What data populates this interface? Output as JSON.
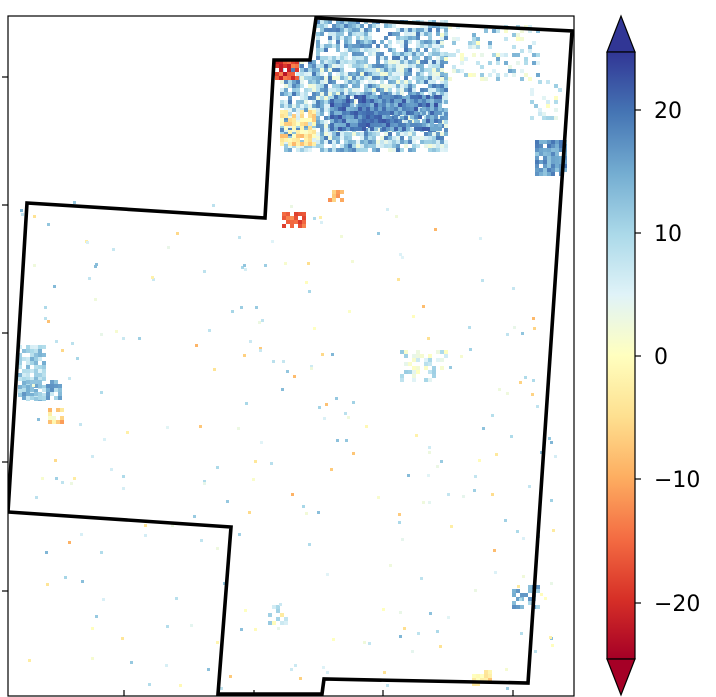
{
  "map": {
    "colormap": "RdYlBu",
    "cmap_stops": [
      "#a50026",
      "#d73027",
      "#f46d43",
      "#fdae61",
      "#fee090",
      "#ffffbf",
      "#e0f3f8",
      "#abd9e9",
      "#74add1",
      "#4575b4",
      "#313695"
    ],
    "boundary_color": "#000000",
    "extend": "both",
    "value_range": [
      -25,
      25
    ]
  },
  "colorbar": {
    "ticks": [
      {
        "value": 20,
        "label": "20"
      },
      {
        "value": 10,
        "label": "10"
      },
      {
        "value": 0,
        "label": "0"
      },
      {
        "value": -10,
        "label": "−10"
      },
      {
        "value": -20,
        "label": "−20"
      }
    ]
  }
}
